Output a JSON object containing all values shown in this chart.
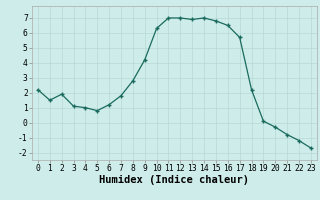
{
  "x": [
    0,
    1,
    2,
    3,
    4,
    5,
    6,
    7,
    8,
    9,
    10,
    11,
    12,
    13,
    14,
    15,
    16,
    17,
    18,
    19,
    20,
    21,
    22,
    23
  ],
  "y": [
    2.2,
    1.5,
    1.9,
    1.1,
    1.0,
    0.8,
    1.2,
    1.8,
    2.8,
    4.2,
    6.3,
    7.0,
    7.0,
    6.9,
    7.0,
    6.8,
    6.5,
    5.7,
    2.2,
    0.1,
    -0.3,
    -0.8,
    -1.2,
    -1.7
  ],
  "xlabel": "Humidex (Indice chaleur)",
  "xlim": [
    -0.5,
    23.5
  ],
  "ylim": [
    -2.5,
    7.8
  ],
  "yticks": [
    -2,
    -1,
    0,
    1,
    2,
    3,
    4,
    5,
    6,
    7
  ],
  "xticks": [
    0,
    1,
    2,
    3,
    4,
    5,
    6,
    7,
    8,
    9,
    10,
    11,
    12,
    13,
    14,
    15,
    16,
    17,
    18,
    19,
    20,
    21,
    22,
    23
  ],
  "line_color": "#1a6b5e",
  "marker": "+",
  "bg_color": "#ceecea",
  "grid_color": "#b8d8d6",
  "label_fontsize": 7.5,
  "tick_fontsize": 5.8
}
